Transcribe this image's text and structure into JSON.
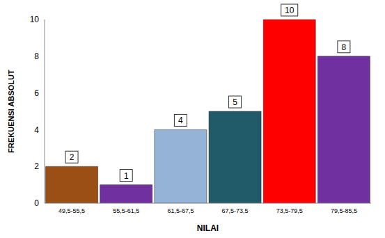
{
  "chart_data": {
    "type": "bar",
    "xlabel": "NILAI",
    "ylabel": "FREKUENSI ABSOLUT",
    "categories": [
      "49,5-55,5",
      "55,5-61,5",
      "61,5-67,5",
      "67,5-73,5",
      "73,5-79,5",
      "79,5-85,5"
    ],
    "values": [
      2,
      1,
      4,
      5,
      10,
      8
    ],
    "colors": [
      "#9c4f14",
      "#7030a0",
      "#95b3d7",
      "#215a68",
      "#ff0000",
      "#7030a0"
    ],
    "ylim": [
      0,
      10
    ],
    "yticks": [
      0,
      2,
      4,
      6,
      8,
      10
    ],
    "grid": false,
    "data_labels": true
  }
}
